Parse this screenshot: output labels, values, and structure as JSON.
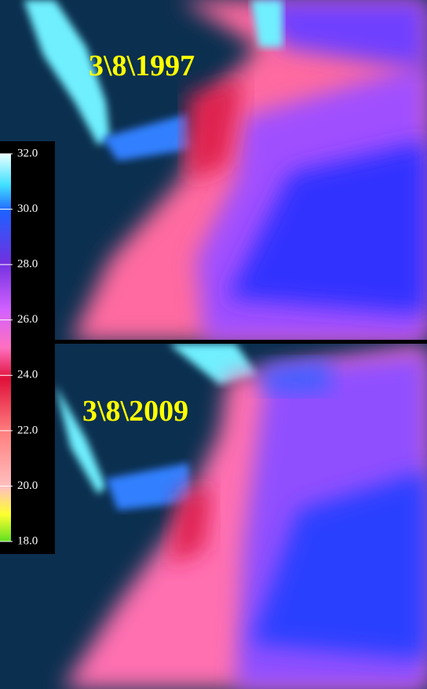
{
  "panels": [
    {
      "date": "3\\8\\1997"
    },
    {
      "date": "3\\8\\2009"
    }
  ],
  "colorbar": {
    "range": [
      18,
      32
    ],
    "ticks": [
      {
        "value": 32,
        "label": "32.0"
      },
      {
        "value": 30,
        "label": "30.0"
      },
      {
        "value": 28,
        "label": "28.0"
      },
      {
        "value": 26,
        "label": "26.0"
      },
      {
        "value": 24,
        "label": "24.0"
      },
      {
        "value": 22,
        "label": "22.0"
      },
      {
        "value": 20,
        "label": "20.0"
      },
      {
        "value": 18,
        "label": "18.0"
      }
    ]
  }
}
